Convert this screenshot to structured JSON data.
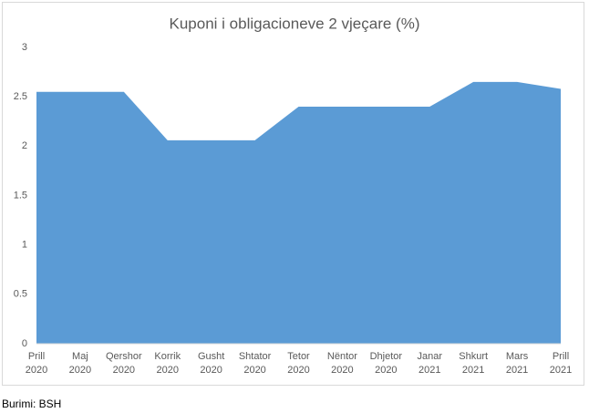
{
  "chart_data": {
    "type": "area",
    "title": "Kuponi i obligacioneve 2 vjeçare (%)",
    "categories": [
      "Prill 2020",
      "Maj 2020",
      "Qershor 2020",
      "Korrik 2020",
      "Gusht 2020",
      "Shtator 2020",
      "Tetor 2020",
      "Nëntor 2020",
      "Dhjetor 2020",
      "Janar 2021",
      "Shkurt 2021",
      "Mars 2021",
      "Prill 2021"
    ],
    "values": [
      2.55,
      2.55,
      2.55,
      2.06,
      2.06,
      2.06,
      2.4,
      2.4,
      2.4,
      2.4,
      2.65,
      2.65,
      2.58
    ],
    "color": "#5b9bd5",
    "ylim": [
      0,
      3
    ],
    "yticks": [
      0,
      0.5,
      1,
      1.5,
      2,
      2.5,
      3
    ],
    "grid": false
  },
  "source": "Burimi: BSH"
}
